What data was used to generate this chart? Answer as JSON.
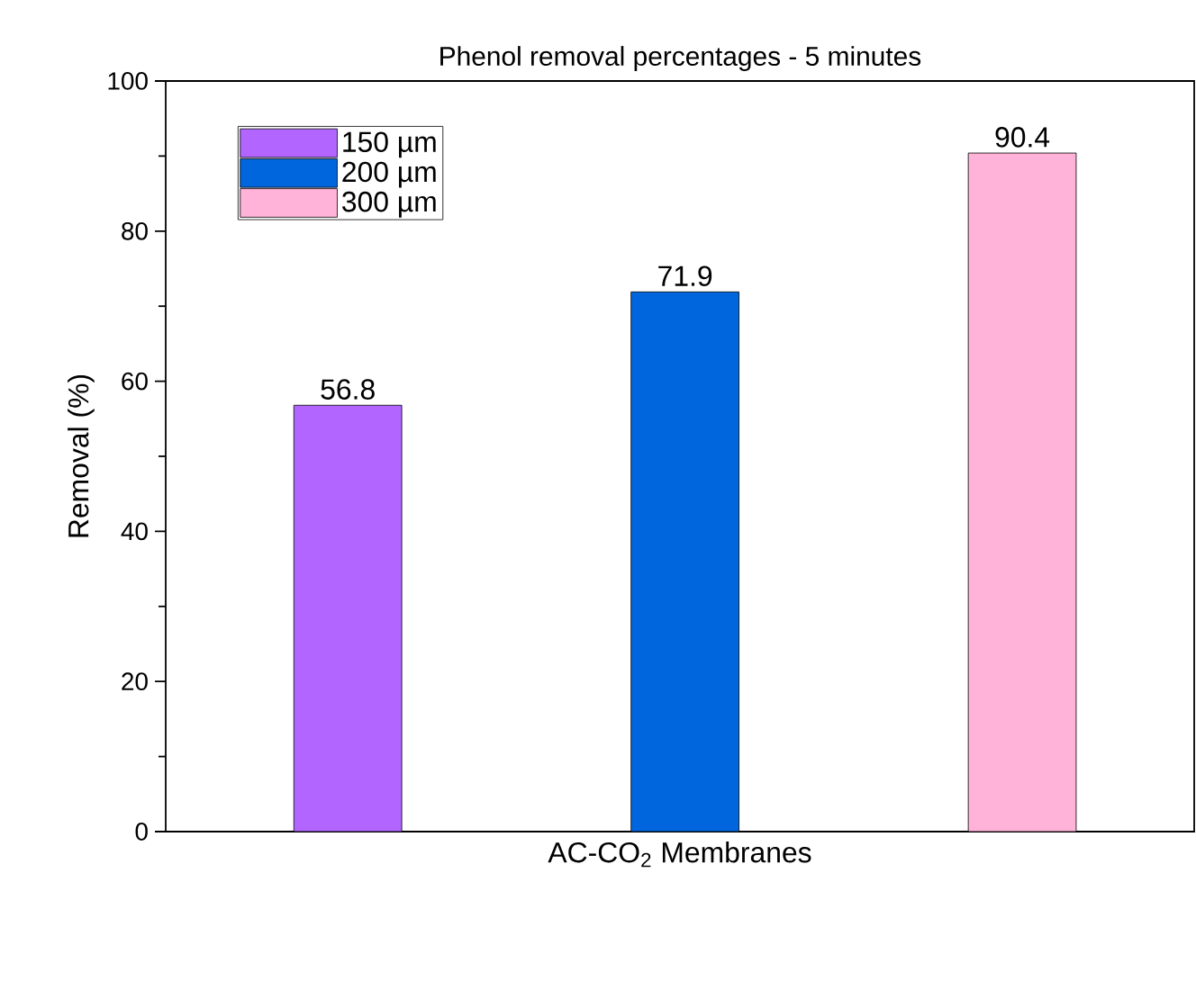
{
  "chart_data": {
    "type": "bar",
    "title": "Phenol removal percentages - 5 minutes",
    "xlabel": "AC-CO$_{2}$ Membranes",
    "ylabel": "Removal (%)",
    "categories": [
      null,
      null,
      null
    ],
    "stacked": true,
    "series": [
      {
        "name": "150 µm",
        "color": "#b266ff",
        "values": [
          56.8,
          null,
          null
        ]
      },
      {
        "name": "200 µm",
        "color": "#0066dd",
        "values": [
          null,
          71.9,
          null
        ]
      },
      {
        "name": "300 µm",
        "color": "#ffb3d9",
        "values": [
          null,
          null,
          90.4
        ]
      }
    ],
    "ylim": [
      0,
      100
    ],
    "yticks": [
      0,
      {
        "value": 10,
        "label": null
      },
      20,
      {
        "value": 30,
        "label": null
      },
      40,
      {
        "value": 50,
        "label": null
      },
      60,
      {
        "value": 70,
        "label": null
      },
      80,
      {
        "value": 90,
        "label": null
      },
      100
    ],
    "data_labels": true,
    "legend": "top left",
    "grid": false
  }
}
